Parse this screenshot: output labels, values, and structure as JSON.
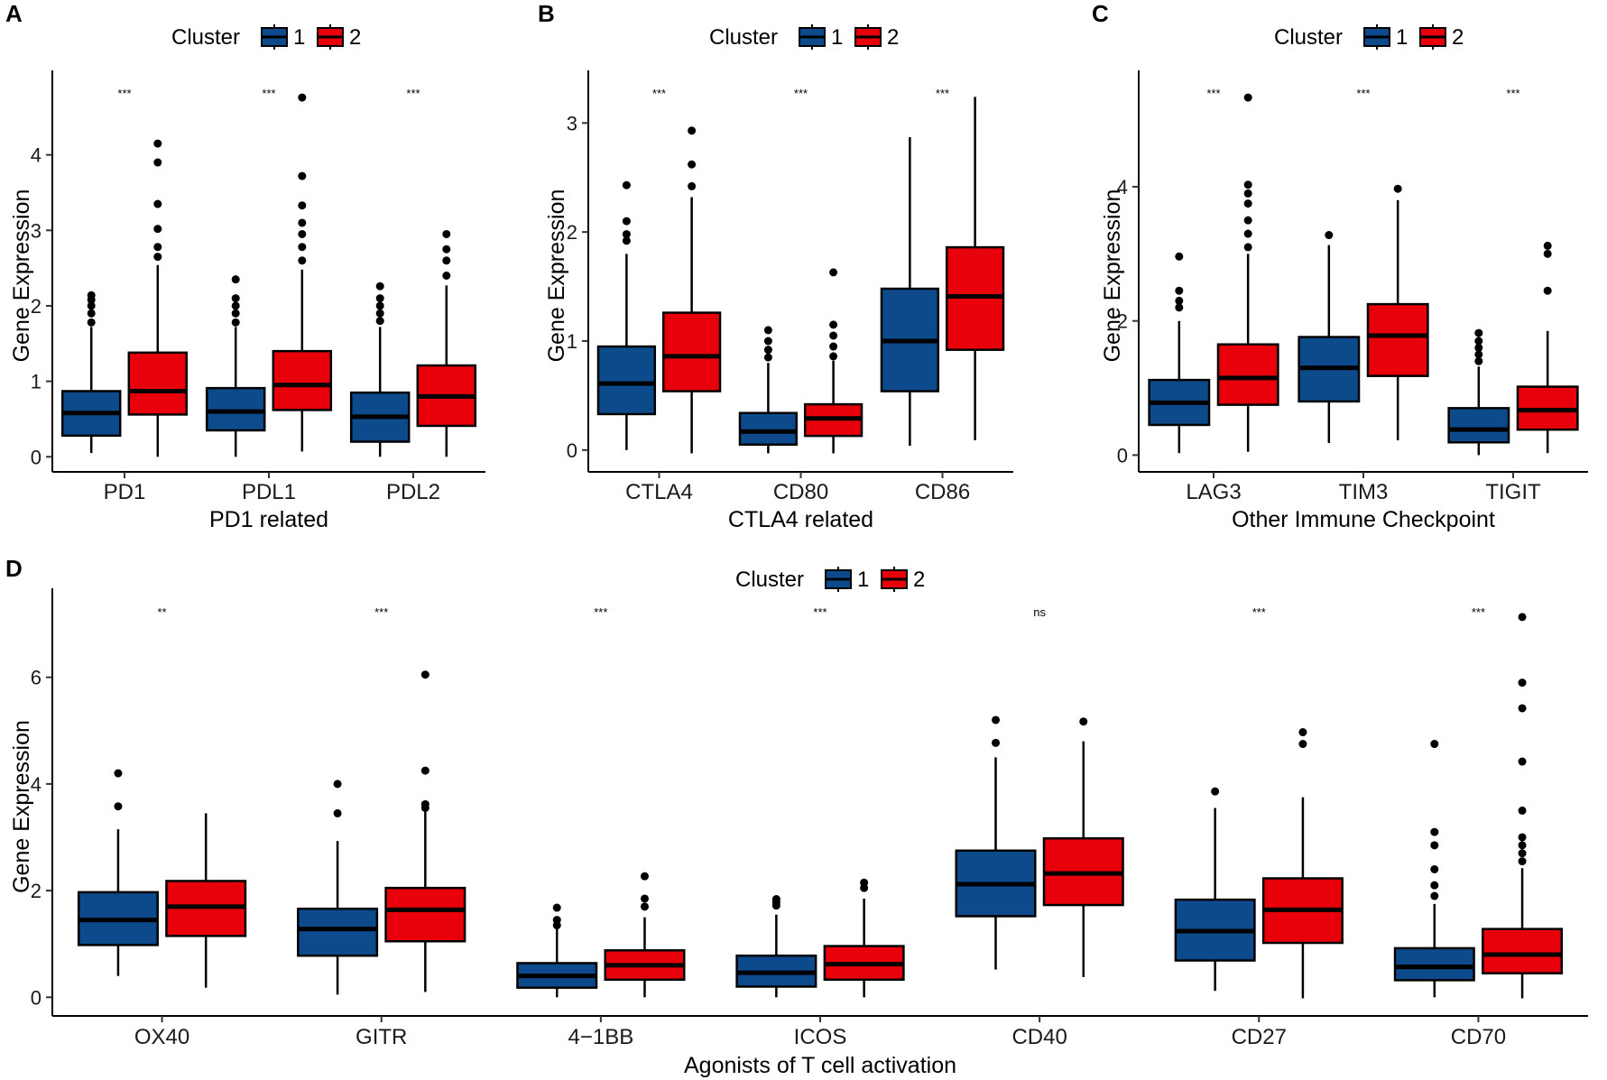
{
  "figure": {
    "legend_title": "Cluster",
    "colors": {
      "cluster1": "#0d4a8c",
      "cluster2": "#e8000b",
      "stroke": "#000000"
    }
  },
  "chart_data": [
    {
      "panel": "A",
      "type": "box",
      "xlabel": "PD1 related",
      "ylabel": "Gene Expression",
      "ylim": [
        -0.2,
        5.0
      ],
      "yticks": [
        0,
        1,
        2,
        3,
        4
      ],
      "legend": {
        "title": "Cluster",
        "entries": [
          "1",
          "2"
        ]
      },
      "categories": [
        "PD1",
        "PDL1",
        "PDL2"
      ],
      "significance": [
        "***",
        "***",
        "***"
      ],
      "series": [
        {
          "name": "1",
          "boxes": [
            {
              "min": 0.05,
              "q1": 0.28,
              "median": 0.58,
              "q3": 0.87,
              "max": 1.72,
              "outliers": [
                1.78,
                1.9,
                2.0,
                2.08,
                2.14
              ]
            },
            {
              "min": 0.0,
              "q1": 0.35,
              "median": 0.6,
              "q3": 0.91,
              "max": 1.72,
              "outliers": [
                1.78,
                1.9,
                2.0,
                2.1,
                2.35
              ]
            },
            {
              "min": 0.0,
              "q1": 0.2,
              "median": 0.53,
              "q3": 0.85,
              "max": 1.72,
              "outliers": [
                1.8,
                1.9,
                2.0,
                2.1,
                2.26
              ]
            }
          ]
        },
        {
          "name": "2",
          "boxes": [
            {
              "min": 0.0,
              "q1": 0.56,
              "median": 0.87,
              "q3": 1.38,
              "max": 2.54,
              "outliers": [
                2.65,
                2.78,
                3.02,
                3.35,
                3.9,
                4.15
              ]
            },
            {
              "min": 0.07,
              "q1": 0.62,
              "median": 0.95,
              "q3": 1.4,
              "max": 2.48,
              "outliers": [
                2.6,
                2.78,
                2.95,
                3.1,
                3.33,
                3.72,
                4.76
              ]
            },
            {
              "min": 0.0,
              "q1": 0.41,
              "median": 0.8,
              "q3": 1.21,
              "max": 2.27,
              "outliers": [
                2.4,
                2.6,
                2.75,
                2.95
              ]
            }
          ]
        }
      ]
    },
    {
      "panel": "B",
      "type": "box",
      "xlabel": "CTLA4 related",
      "ylabel": "Gene Expression",
      "ylim": [
        -0.2,
        3.4
      ],
      "yticks": [
        0,
        1,
        2,
        3
      ],
      "legend": {
        "title": "Cluster",
        "entries": [
          "1",
          "2"
        ]
      },
      "categories": [
        "CTLA4",
        "CD80",
        "CD86"
      ],
      "significance": [
        "***",
        "***",
        "***"
      ],
      "series": [
        {
          "name": "1",
          "boxes": [
            {
              "min": 0.0,
              "q1": 0.33,
              "median": 0.61,
              "q3": 0.95,
              "max": 1.8,
              "outliers": [
                1.92,
                1.98,
                2.1,
                2.43
              ]
            },
            {
              "min": -0.03,
              "q1": 0.05,
              "median": 0.17,
              "q3": 0.34,
              "max": 0.8,
              "outliers": [
                0.85,
                0.92,
                1.0,
                1.1
              ]
            },
            {
              "min": 0.04,
              "q1": 0.54,
              "median": 1.0,
              "q3": 1.48,
              "max": 2.87,
              "outliers": []
            }
          ]
        },
        {
          "name": "2",
          "boxes": [
            {
              "min": -0.03,
              "q1": 0.54,
              "median": 0.86,
              "q3": 1.26,
              "max": 2.32,
              "outliers": [
                2.42,
                2.62,
                2.93
              ]
            },
            {
              "min": -0.03,
              "q1": 0.13,
              "median": 0.29,
              "q3": 0.42,
              "max": 0.82,
              "outliers": [
                0.86,
                0.95,
                1.05,
                1.15,
                1.63
              ]
            },
            {
              "min": 0.09,
              "q1": 0.92,
              "median": 1.41,
              "q3": 1.86,
              "max": 3.24,
              "outliers": []
            }
          ]
        }
      ]
    },
    {
      "panel": "C",
      "type": "box",
      "xlabel": "Other Immune Checkpoint",
      "ylabel": "Gene Expression",
      "ylim": [
        -0.25,
        5.6
      ],
      "yticks": [
        0,
        2,
        4
      ],
      "legend": {
        "title": "Cluster",
        "entries": [
          "1",
          "2"
        ]
      },
      "categories": [
        "LAG3",
        "TIM3",
        "TIGIT"
      ],
      "significance": [
        "***",
        "***",
        "***"
      ],
      "series": [
        {
          "name": "1",
          "boxes": [
            {
              "min": 0.03,
              "q1": 0.45,
              "median": 0.78,
              "q3": 1.12,
              "max": 2.0,
              "outliers": [
                2.2,
                2.3,
                2.45,
                2.96
              ]
            },
            {
              "min": 0.18,
              "q1": 0.8,
              "median": 1.3,
              "q3": 1.76,
              "max": 3.13,
              "outliers": [
                3.28
              ]
            },
            {
              "min": 0.0,
              "q1": 0.19,
              "median": 0.38,
              "q3": 0.7,
              "max": 1.32,
              "outliers": [
                1.4,
                1.5,
                1.6,
                1.7,
                1.82
              ]
            }
          ]
        },
        {
          "name": "2",
          "boxes": [
            {
              "min": 0.05,
              "q1": 0.75,
              "median": 1.15,
              "q3": 1.65,
              "max": 3.0,
              "outliers": [
                3.1,
                3.3,
                3.5,
                3.75,
                3.9,
                4.03,
                5.33
              ]
            },
            {
              "min": 0.22,
              "q1": 1.18,
              "median": 1.78,
              "q3": 2.25,
              "max": 3.8,
              "outliers": [
                3.97
              ]
            },
            {
              "min": 0.03,
              "q1": 0.38,
              "median": 0.67,
              "q3": 1.02,
              "max": 1.85,
              "outliers": [
                2.45,
                3.0,
                3.12
              ]
            }
          ]
        }
      ]
    },
    {
      "panel": "D",
      "type": "box",
      "xlabel": "Agonists of T cell activation",
      "ylabel": "Gene Expression",
      "ylim": [
        -0.35,
        7.5
      ],
      "yticks": [
        0,
        2,
        4,
        6
      ],
      "legend": {
        "title": "Cluster",
        "entries": [
          "1",
          "2"
        ]
      },
      "categories": [
        "OX40",
        "GITR",
        "4−1BB",
        "ICOS",
        "CD40",
        "CD27",
        "CD70"
      ],
      "significance": [
        "**",
        "***",
        "***",
        "***",
        "ns",
        "***",
        "***"
      ],
      "series": [
        {
          "name": "1",
          "boxes": [
            {
              "min": 0.4,
              "q1": 0.98,
              "median": 1.45,
              "q3": 1.97,
              "max": 3.15,
              "outliers": [
                3.58,
                4.2
              ]
            },
            {
              "min": 0.05,
              "q1": 0.78,
              "median": 1.28,
              "q3": 1.66,
              "max": 2.93,
              "outliers": [
                3.45,
                4.0
              ]
            },
            {
              "min": 0.0,
              "q1": 0.18,
              "median": 0.4,
              "q3": 0.64,
              "max": 1.3,
              "outliers": [
                1.35,
                1.45,
                1.68
              ]
            },
            {
              "min": 0.0,
              "q1": 0.2,
              "median": 0.46,
              "q3": 0.78,
              "max": 1.55,
              "outliers": [
                1.72,
                1.78,
                1.84
              ]
            },
            {
              "min": 0.52,
              "q1": 1.52,
              "median": 2.12,
              "q3": 2.75,
              "max": 4.5,
              "outliers": [
                4.77,
                5.2
              ]
            },
            {
              "min": 0.12,
              "q1": 0.69,
              "median": 1.24,
              "q3": 1.83,
              "max": 3.55,
              "outliers": [
                3.86
              ]
            },
            {
              "min": 0.0,
              "q1": 0.32,
              "median": 0.57,
              "q3": 0.92,
              "max": 1.75,
              "outliers": [
                1.9,
                2.1,
                2.4,
                2.85,
                3.1,
                4.75
              ]
            }
          ]
        },
        {
          "name": "2",
          "boxes": [
            {
              "min": 0.18,
              "q1": 1.15,
              "median": 1.7,
              "q3": 2.18,
              "max": 3.45,
              "outliers": []
            },
            {
              "min": 0.1,
              "q1": 1.05,
              "median": 1.64,
              "q3": 2.05,
              "max": 3.48,
              "outliers": [
                3.55,
                3.62,
                4.25,
                6.05
              ]
            },
            {
              "min": 0.0,
              "q1": 0.33,
              "median": 0.6,
              "q3": 0.88,
              "max": 1.5,
              "outliers": [
                1.7,
                1.85,
                2.27
              ]
            },
            {
              "min": 0.0,
              "q1": 0.33,
              "median": 0.62,
              "q3": 0.96,
              "max": 1.85,
              "outliers": [
                2.05,
                2.15
              ]
            },
            {
              "min": 0.38,
              "q1": 1.73,
              "median": 2.32,
              "q3": 2.98,
              "max": 4.8,
              "outliers": [
                5.17
              ]
            },
            {
              "min": -0.02,
              "q1": 1.02,
              "median": 1.64,
              "q3": 2.23,
              "max": 3.75,
              "outliers": [
                4.75,
                4.97
              ]
            },
            {
              "min": -0.02,
              "q1": 0.45,
              "median": 0.8,
              "q3": 1.28,
              "max": 2.42,
              "outliers": [
                2.55,
                2.7,
                2.85,
                3.0,
                3.5,
                4.42,
                5.42,
                5.9,
                7.13
              ]
            }
          ]
        }
      ]
    }
  ]
}
